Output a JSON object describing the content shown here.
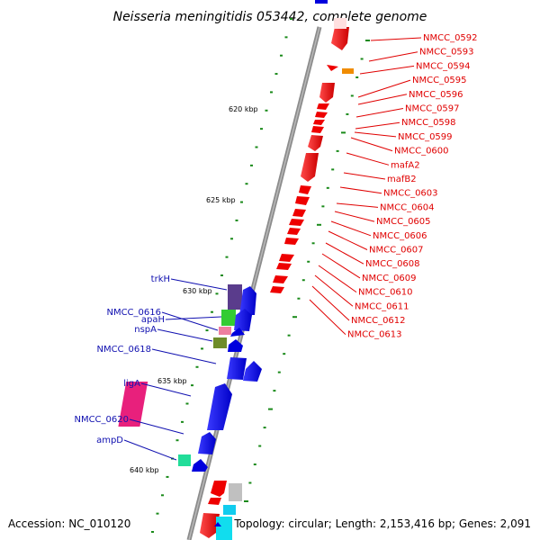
{
  "title": "Neisseria meningitidis 053442, complete genome",
  "footer": {
    "accession": "Accession: NC_010120",
    "summary": "Topology: circular; Length: 2,153,416 bp; Genes: 2,091"
  },
  "kbp_labels": [
    "620 kbp",
    "625 kbp",
    "630 kbp",
    "635 kbp",
    "640 kbp"
  ],
  "right_genes": [
    "NMCC_0592",
    "NMCC_0593",
    "NMCC_0594",
    "NMCC_0595",
    "NMCC_0596",
    "NMCC_0597",
    "NMCC_0598",
    "NMCC_0599",
    "NMCC_0600",
    "mafA2",
    "mafB2",
    "NMCC_0603",
    "NMCC_0604",
    "NMCC_0605",
    "NMCC_0606",
    "NMCC_0607",
    "NMCC_0608",
    "NMCC_0609",
    "NMCC_0610",
    "NMCC_0611",
    "NMCC_0612",
    "NMCC_0613"
  ],
  "left_genes": [
    "trkH",
    "apaH",
    "NMCC_0616",
    "nspA",
    "NMCC_0618",
    "ligA",
    "NMCC_0620",
    "ampD"
  ],
  "colors": {
    "forward_strand": "#0000ee",
    "reverse_strand": "#ee0000",
    "backbone": "#888888",
    "tick": "#1a8a1a",
    "right_label": "#e00000",
    "left_label": "#1010b0"
  }
}
